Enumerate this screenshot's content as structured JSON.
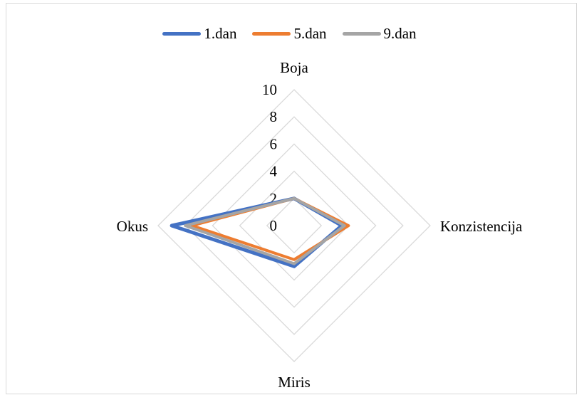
{
  "chart_data": {
    "type": "radar",
    "title": "",
    "axes": [
      "Boja",
      "Konzistencija",
      "Miris",
      "Okus"
    ],
    "rlim": [
      0,
      10
    ],
    "ticks": [
      "0",
      "2",
      "4",
      "6",
      "8",
      "10"
    ],
    "grid": true,
    "legend_position": "top",
    "series": [
      {
        "name": "1.dan",
        "color": "#4472C4",
        "values": [
          2.0,
          3.5,
          3.0,
          9.0
        ]
      },
      {
        "name": "5.dan",
        "color": "#ED7D31",
        "values": [
          2.0,
          4.0,
          2.5,
          7.5
        ]
      },
      {
        "name": "9.dan",
        "color": "#A5A5A5",
        "values": [
          2.0,
          3.7,
          2.8,
          8.0
        ]
      }
    ]
  }
}
